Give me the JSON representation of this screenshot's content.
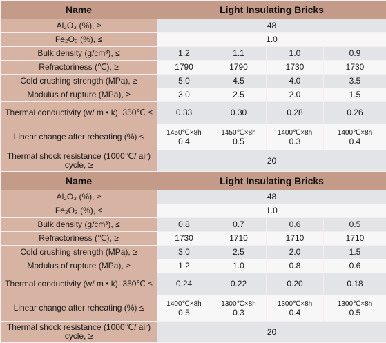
{
  "sections": [
    {
      "header": {
        "name": "Name",
        "title": "Light Insulating Bricks"
      },
      "rows": [
        {
          "label": "Al₂O₃ (%), ≥",
          "values": [
            "48"
          ]
        },
        {
          "label": "Fe₂O₃ (%), ≤",
          "values": [
            "1.0"
          ]
        },
        {
          "label": "Bulk density (g/cm³), ≤",
          "values": [
            "1.2",
            "1.1",
            "1.0",
            "0.9"
          ]
        },
        {
          "label": "Refractoriness (℃), ≥",
          "values": [
            "1790",
            "1790",
            "1730",
            "1730"
          ]
        },
        {
          "label": "Cold crushing strength (MPa), ≥",
          "values": [
            "5.0",
            "4.5",
            "4.0",
            "3.5"
          ]
        },
        {
          "label": "Modulus of rupture (MPa), ≥",
          "values": [
            "3.0",
            "2.5",
            "2.0",
            "1.5"
          ]
        },
        {
          "label": "Thermal conductivity (w/ m • k), 350℃ ≤",
          "values": [
            "0.33",
            "0.30",
            "0.28",
            "0.26"
          ]
        },
        {
          "label": "Linear change after reheating (%) ≤",
          "values": [
            [
              "1450℃×8h",
              "0.4"
            ],
            [
              "1450℃×8h",
              "0.5"
            ],
            [
              "1400℃×8h",
              "0.3"
            ],
            [
              "1400℃×8h",
              "0.4"
            ]
          ]
        },
        {
          "label": "Thermal shock resistance (1000℃/ air) cycle, ≥",
          "values": [
            "20"
          ]
        }
      ]
    },
    {
      "header": {
        "name": "Name",
        "title": "Light Insulating Bricks"
      },
      "rows": [
        {
          "label": "Al₂O₃ (%), ≥",
          "values": [
            "48"
          ]
        },
        {
          "label": "Fe₂O₃ (%), ≤",
          "values": [
            "1.0"
          ]
        },
        {
          "label": "Bulk density (g/cm³), ≤",
          "values": [
            "0.8",
            "0.7",
            "0.6",
            "0.5"
          ]
        },
        {
          "label": "Refractoriness (℃), ≥",
          "values": [
            "1730",
            "1710",
            "1710",
            "1710"
          ]
        },
        {
          "label": "Cold crushing strength (MPa), ≥",
          "values": [
            "3.0",
            "2.5",
            "2.0",
            "1.5"
          ]
        },
        {
          "label": "Modulus of rupture (MPa), ≥",
          "values": [
            "1.2",
            "1.0",
            "0.8",
            "0.6"
          ]
        },
        {
          "label": "Thermal conductivity (w/ m • k), 350℃ ≤",
          "values": [
            "0.24",
            "0.22",
            "0.20",
            "0.18"
          ]
        },
        {
          "label": "Linear change after reheating (%) ≤",
          "values": [
            [
              "1400℃×8h",
              "0.5"
            ],
            [
              "1300℃×8h",
              "0.3"
            ],
            [
              "1300℃×8h",
              "0.4"
            ],
            [
              "1300℃×8h",
              "0.5"
            ]
          ]
        },
        {
          "label": "Thermal shock resistance (1000℃/ air) cycle, ≥",
          "values": [
            "20"
          ]
        }
      ]
    }
  ]
}
